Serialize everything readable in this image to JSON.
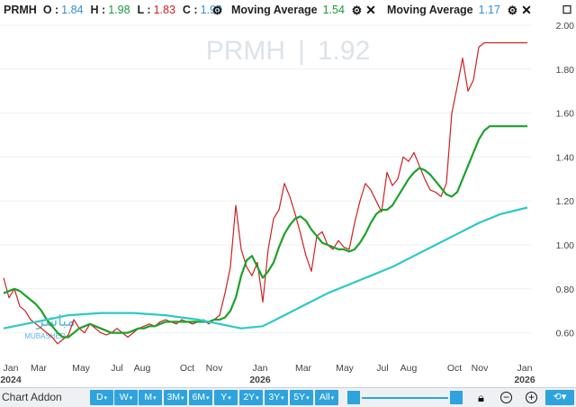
{
  "legend": {
    "symbol": "PRMH",
    "open_label": "O :",
    "open_value": "1.84",
    "high_label": "H :",
    "high_value": "1.98",
    "low_label": "L :",
    "low_value": "1.83",
    "close_label": "C :",
    "close_value": "1.90",
    "ma1_label": "Moving Average",
    "ma1_value": "1.54",
    "ma2_label": "Moving Average",
    "ma2_value": "1.17"
  },
  "watermark": {
    "symbol": "PRMH",
    "separator": "|",
    "price": "1.92"
  },
  "logo": {
    "arabic": "مباشر",
    "latin": "MUBASHER"
  },
  "toolbar": {
    "addon_label": "Chart Addon",
    "ranges": [
      "D",
      "W",
      "M",
      "3M",
      "6M",
      "Y",
      "2Y",
      "3Y",
      "5Y",
      "All"
    ]
  },
  "icons": {
    "settings": "gear-icon",
    "close": "close-icon",
    "maximize": "maximize-icon",
    "lock": "lock-icon",
    "zoom_out": "zoom-out-icon",
    "zoom_in": "zoom-in-icon",
    "reset": "refresh-icon"
  },
  "colors": {
    "price": "#cc2222",
    "ma_short": "#1ea12c",
    "ma_long": "#2ec8c8",
    "accent": "#2ea3dd"
  },
  "chart_data": {
    "type": "line",
    "title": "PRMH | 1.92",
    "ylim": [
      0.5,
      2.0
    ],
    "y_ticks": [
      "2.00",
      "1.80",
      "1.60",
      "1.40",
      "1.20",
      "1.00",
      "0.80",
      "0.60"
    ],
    "x_ticks": [
      {
        "label": "Jan",
        "year": "2024"
      },
      {
        "label": "Mar"
      },
      {
        "label": "May"
      },
      {
        "label": "Jul"
      },
      {
        "label": "Aug"
      },
      {
        "label": "Oct"
      },
      {
        "label": "Nov"
      },
      {
        "label": "Jan",
        "year": "2026"
      },
      {
        "label": "Mar"
      },
      {
        "label": "May"
      },
      {
        "label": "Jul"
      },
      {
        "label": "Aug"
      },
      {
        "label": "Oct"
      },
      {
        "label": "Nov"
      },
      {
        "label": "Jan",
        "year": "2026"
      }
    ],
    "series": [
      {
        "name": "Moving Average",
        "key": "ma_short",
        "x": [
          0,
          1,
          2,
          3,
          4,
          5,
          6,
          7,
          8,
          9,
          10,
          11,
          12,
          13,
          14,
          15,
          16,
          17,
          18,
          19,
          20,
          21,
          22,
          23,
          24,
          25,
          26,
          27,
          28,
          29,
          30,
          31,
          32,
          33,
          34,
          35,
          36,
          37,
          38,
          39,
          40,
          41,
          42,
          43,
          44,
          45,
          46,
          47,
          48,
          49,
          50,
          51,
          52,
          53,
          54,
          55,
          56,
          57,
          58,
          59,
          60,
          61,
          62,
          63,
          64,
          65,
          66,
          67,
          68,
          69,
          70,
          71,
          72,
          73,
          74,
          75,
          76,
          77,
          78,
          79,
          80,
          81,
          82,
          83,
          84,
          85,
          86,
          87,
          88,
          89,
          90,
          91,
          92,
          93,
          94,
          95,
          96,
          97
        ],
        "values": [
          0.78,
          0.79,
          0.8,
          0.79,
          0.77,
          0.75,
          0.73,
          0.7,
          0.66,
          0.63,
          0.6,
          0.58,
          0.58,
          0.6,
          0.62,
          0.63,
          0.64,
          0.63,
          0.62,
          0.61,
          0.6,
          0.6,
          0.6,
          0.6,
          0.61,
          0.62,
          0.62,
          0.63,
          0.63,
          0.64,
          0.65,
          0.65,
          0.65,
          0.65,
          0.65,
          0.65,
          0.65,
          0.65,
          0.65,
          0.66,
          0.66,
          0.67,
          0.7,
          0.76,
          0.86,
          0.93,
          0.95,
          0.9,
          0.85,
          0.88,
          0.92,
          0.99,
          1.05,
          1.09,
          1.12,
          1.13,
          1.11,
          1.07,
          1.04,
          1.01,
          1.0,
          0.99,
          0.98,
          0.98,
          0.97,
          0.98,
          1.01,
          1.05,
          1.1,
          1.14,
          1.16,
          1.16,
          1.18,
          1.22,
          1.26,
          1.3,
          1.33,
          1.35,
          1.34,
          1.32,
          1.29,
          1.26,
          1.23,
          1.22,
          1.24,
          1.3,
          1.36,
          1.42,
          1.48,
          1.52,
          1.54,
          1.54,
          1.54,
          1.54,
          1.54,
          1.54,
          1.54,
          1.54
        ]
      },
      {
        "name": "Moving Average",
        "key": "ma_long",
        "x": [
          0,
          6,
          12,
          18,
          24,
          30,
          36,
          40,
          44,
          48,
          52,
          56,
          60,
          64,
          68,
          72,
          76,
          80,
          84,
          88,
          92,
          97
        ],
        "values": [
          0.62,
          0.65,
          0.68,
          0.69,
          0.69,
          0.68,
          0.66,
          0.64,
          0.62,
          0.63,
          0.68,
          0.73,
          0.78,
          0.82,
          0.86,
          0.9,
          0.95,
          1.0,
          1.05,
          1.1,
          1.14,
          1.17
        ]
      }
    ],
    "price": {
      "x": [
        0,
        1,
        2,
        3,
        4,
        5,
        6,
        7,
        8,
        9,
        10,
        11,
        12,
        13,
        14,
        15,
        16,
        17,
        18,
        19,
        20,
        21,
        22,
        23,
        24,
        25,
        26,
        27,
        28,
        29,
        30,
        31,
        32,
        33,
        34,
        35,
        36,
        37,
        38,
        39,
        40,
        41,
        42,
        43,
        44,
        45,
        46,
        47,
        48,
        49,
        50,
        51,
        52,
        53,
        54,
        55,
        56,
        57,
        58,
        59,
        60,
        61,
        62,
        63,
        64,
        65,
        66,
        67,
        68,
        69,
        70,
        71,
        72,
        73,
        74,
        75,
        76,
        77,
        78,
        79,
        80,
        81,
        82,
        83,
        84,
        85,
        86,
        87,
        88,
        89,
        90,
        91,
        92,
        93,
        94,
        95,
        96,
        97
      ],
      "values": [
        0.85,
        0.76,
        0.8,
        0.72,
        0.7,
        0.66,
        0.64,
        0.62,
        0.6,
        0.58,
        0.55,
        0.57,
        0.59,
        0.66,
        0.62,
        0.6,
        0.64,
        0.62,
        0.6,
        0.59,
        0.6,
        0.62,
        0.6,
        0.58,
        0.6,
        0.62,
        0.63,
        0.64,
        0.63,
        0.65,
        0.66,
        0.65,
        0.64,
        0.66,
        0.65,
        0.64,
        0.65,
        0.66,
        0.64,
        0.66,
        0.68,
        0.78,
        0.9,
        1.18,
        0.98,
        0.9,
        0.86,
        0.92,
        0.74,
        0.98,
        1.12,
        1.16,
        1.28,
        1.22,
        1.14,
        1.05,
        0.95,
        0.88,
        1.04,
        1.06,
        1.0,
        0.98,
        1.02,
        0.99,
        0.98,
        1.1,
        1.2,
        1.28,
        1.25,
        1.2,
        1.15,
        1.33,
        1.27,
        1.3,
        1.4,
        1.38,
        1.42,
        1.36,
        1.3,
        1.25,
        1.24,
        1.22,
        1.28,
        1.6,
        1.72,
        1.85,
        1.7,
        1.75,
        1.9,
        1.92,
        1.92,
        1.92,
        1.92,
        1.92,
        1.92,
        1.92,
        1.92,
        1.92
      ]
    }
  }
}
